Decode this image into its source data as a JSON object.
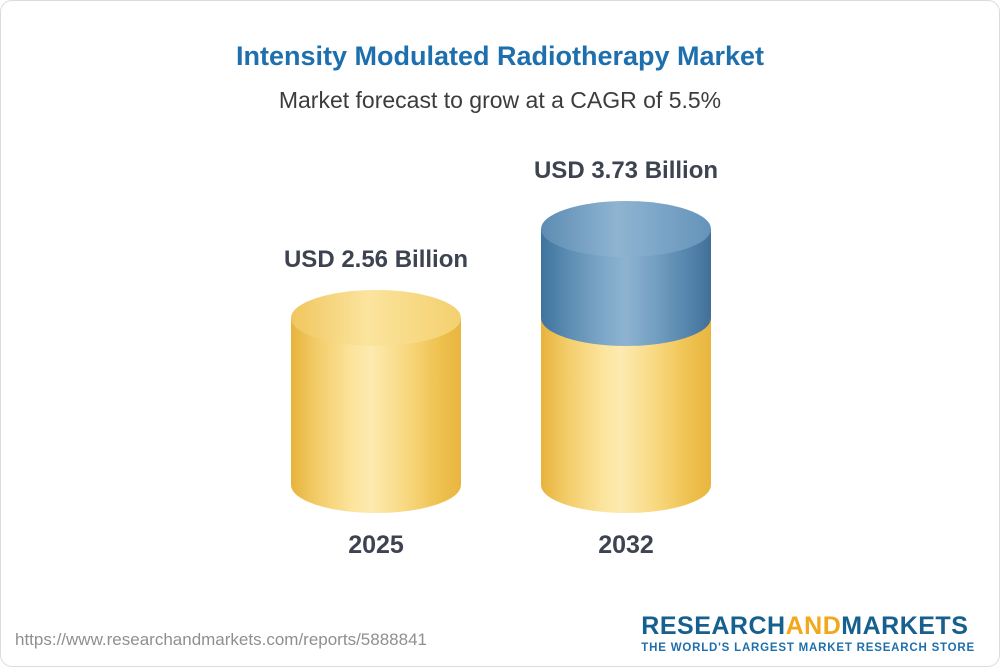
{
  "header": {
    "title": "Intensity Modulated Radiotherapy Market",
    "subtitle": "Market forecast to grow at a CAGR of 5.5%"
  },
  "chart_data": {
    "type": "bar",
    "style": "3d vertical cylinders; 2032 bar drawn as yellow base equal to 2025 value with blue growth segment on top",
    "categories": [
      "2025",
      "2032"
    ],
    "values": [
      2.56,
      3.73
    ],
    "value_labels": [
      "USD 2.56 Billion",
      "USD 3.73 Billion"
    ],
    "unit": "USD Billion",
    "cagr": "5.5%",
    "ylim": [
      0,
      3.73
    ],
    "grid": "off",
    "legend": "none",
    "colors": {
      "base_segment": "#f5cf6a",
      "growth_segment": "#5b8cb2",
      "label_text": "#3d4350",
      "title_text": "#1e6fad"
    }
  },
  "footer": {
    "url": "https://www.researchandmarkets.com/reports/5888841",
    "logo": {
      "part1": "RESEARCH",
      "part2": "AND",
      "part3": "MARKETS",
      "tagline": "THE WORLD'S LARGEST MARKET RESEARCH STORE"
    }
  }
}
